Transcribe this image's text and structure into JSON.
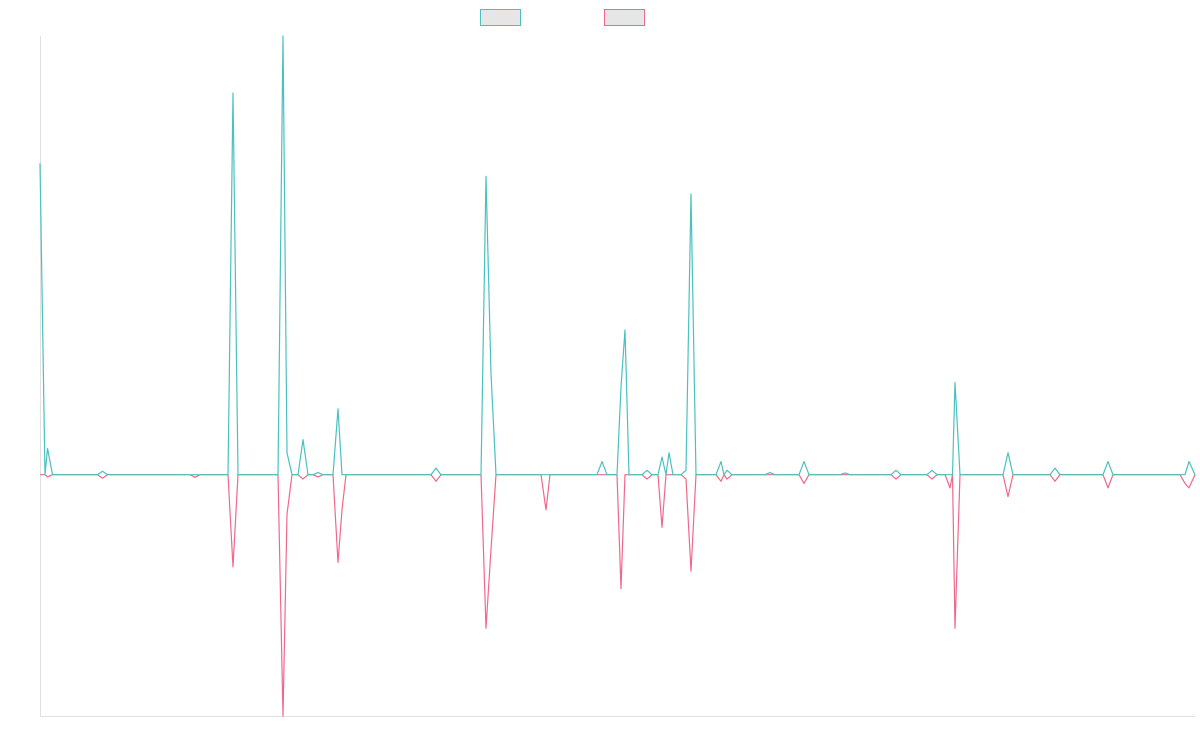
{
  "chart_data": {
    "type": "line",
    "x": [
      0,
      1,
      1.5,
      2.5,
      11.5,
      12.5,
      13.5,
      30,
      31,
      32,
      37.6,
      38.6,
      39.6,
      47.6,
      48.6,
      49.4,
      50.4,
      51.6,
      52.6,
      53.6,
      54.6,
      55.6,
      56.6,
      58.6,
      59.6,
      60.4,
      61.2,
      78.2,
      79.2,
      80.2,
      88.2,
      89.2,
      90.2,
      91.2,
      100.2,
      101.2,
      102,
      111.4,
      112.4,
      113.4,
      115.4,
      116.2,
      117,
      117.8,
      120.4,
      121.4,
      122.4,
      123.6,
      124.4,
      125.2,
      125.8,
      126.6,
      128.2,
      129.2,
      130.2,
      131.2,
      135.2,
      136.2,
      136.8,
      137.4,
      138.4,
      145,
      146,
      147,
      151.8,
      152.8,
      153.8,
      160,
      161,
      162,
      170.2,
      171.2,
      172.2,
      177.4,
      178.4,
      179.4,
      181,
      182,
      182.5,
      183,
      184,
      192.6,
      193.6,
      194.6,
      202,
      203,
      204,
      212.6,
      213.6,
      214.6,
      228,
      229,
      229.8,
      231
    ],
    "series": [
      {
        "color": "#4bc0c0",
        "values": [
          71,
          0,
          6,
          0,
          0,
          0.8,
          0,
          0,
          0,
          0,
          0,
          87,
          0,
          0,
          100,
          5,
          0,
          0,
          8,
          0,
          0,
          0.5,
          0,
          0,
          15,
          0,
          0,
          0,
          1.5,
          0,
          0,
          68,
          23,
          0,
          0,
          0,
          0,
          0,
          3,
          0,
          0,
          20,
          33,
          0,
          0,
          1,
          0,
          0,
          4,
          0,
          5,
          0,
          0,
          1,
          64,
          0,
          0,
          3,
          0,
          1,
          0,
          0,
          0.5,
          0,
          0,
          3,
          0,
          0,
          0.4,
          0,
          0,
          1,
          0,
          0,
          1,
          0,
          0,
          0,
          0,
          21,
          0,
          0,
          5,
          0,
          0,
          1.5,
          0,
          0,
          3,
          0,
          0,
          0,
          3,
          0
        ]
      },
      {
        "color": "#f0688c",
        "values": [
          0,
          0,
          -0.5,
          0,
          0,
          -0.8,
          0,
          0,
          -0.6,
          0,
          0,
          -21,
          0,
          0,
          -55,
          -9,
          0,
          0,
          -1,
          0,
          0,
          -0.5,
          0,
          0,
          -20,
          -8,
          0,
          0,
          -1.5,
          0,
          0,
          -35,
          -17,
          0,
          0,
          -8,
          0,
          0,
          0,
          0,
          0,
          -26,
          0,
          0,
          0,
          -1,
          0,
          0,
          -12,
          0,
          0,
          0,
          0,
          -1,
          -22,
          0,
          0,
          -1.5,
          0,
          -1,
          0,
          0,
          0,
          0,
          0,
          -2,
          0,
          0,
          0,
          0,
          0,
          -1,
          0,
          0,
          -1,
          0,
          0,
          -3,
          0,
          -35,
          0,
          0,
          -5,
          0,
          0,
          -1.5,
          0,
          0,
          -3,
          0,
          0,
          -2,
          -3,
          0
        ]
      }
    ],
    "xlim": [
      0,
      231
    ],
    "ylim": [
      -55,
      100
    ]
  }
}
